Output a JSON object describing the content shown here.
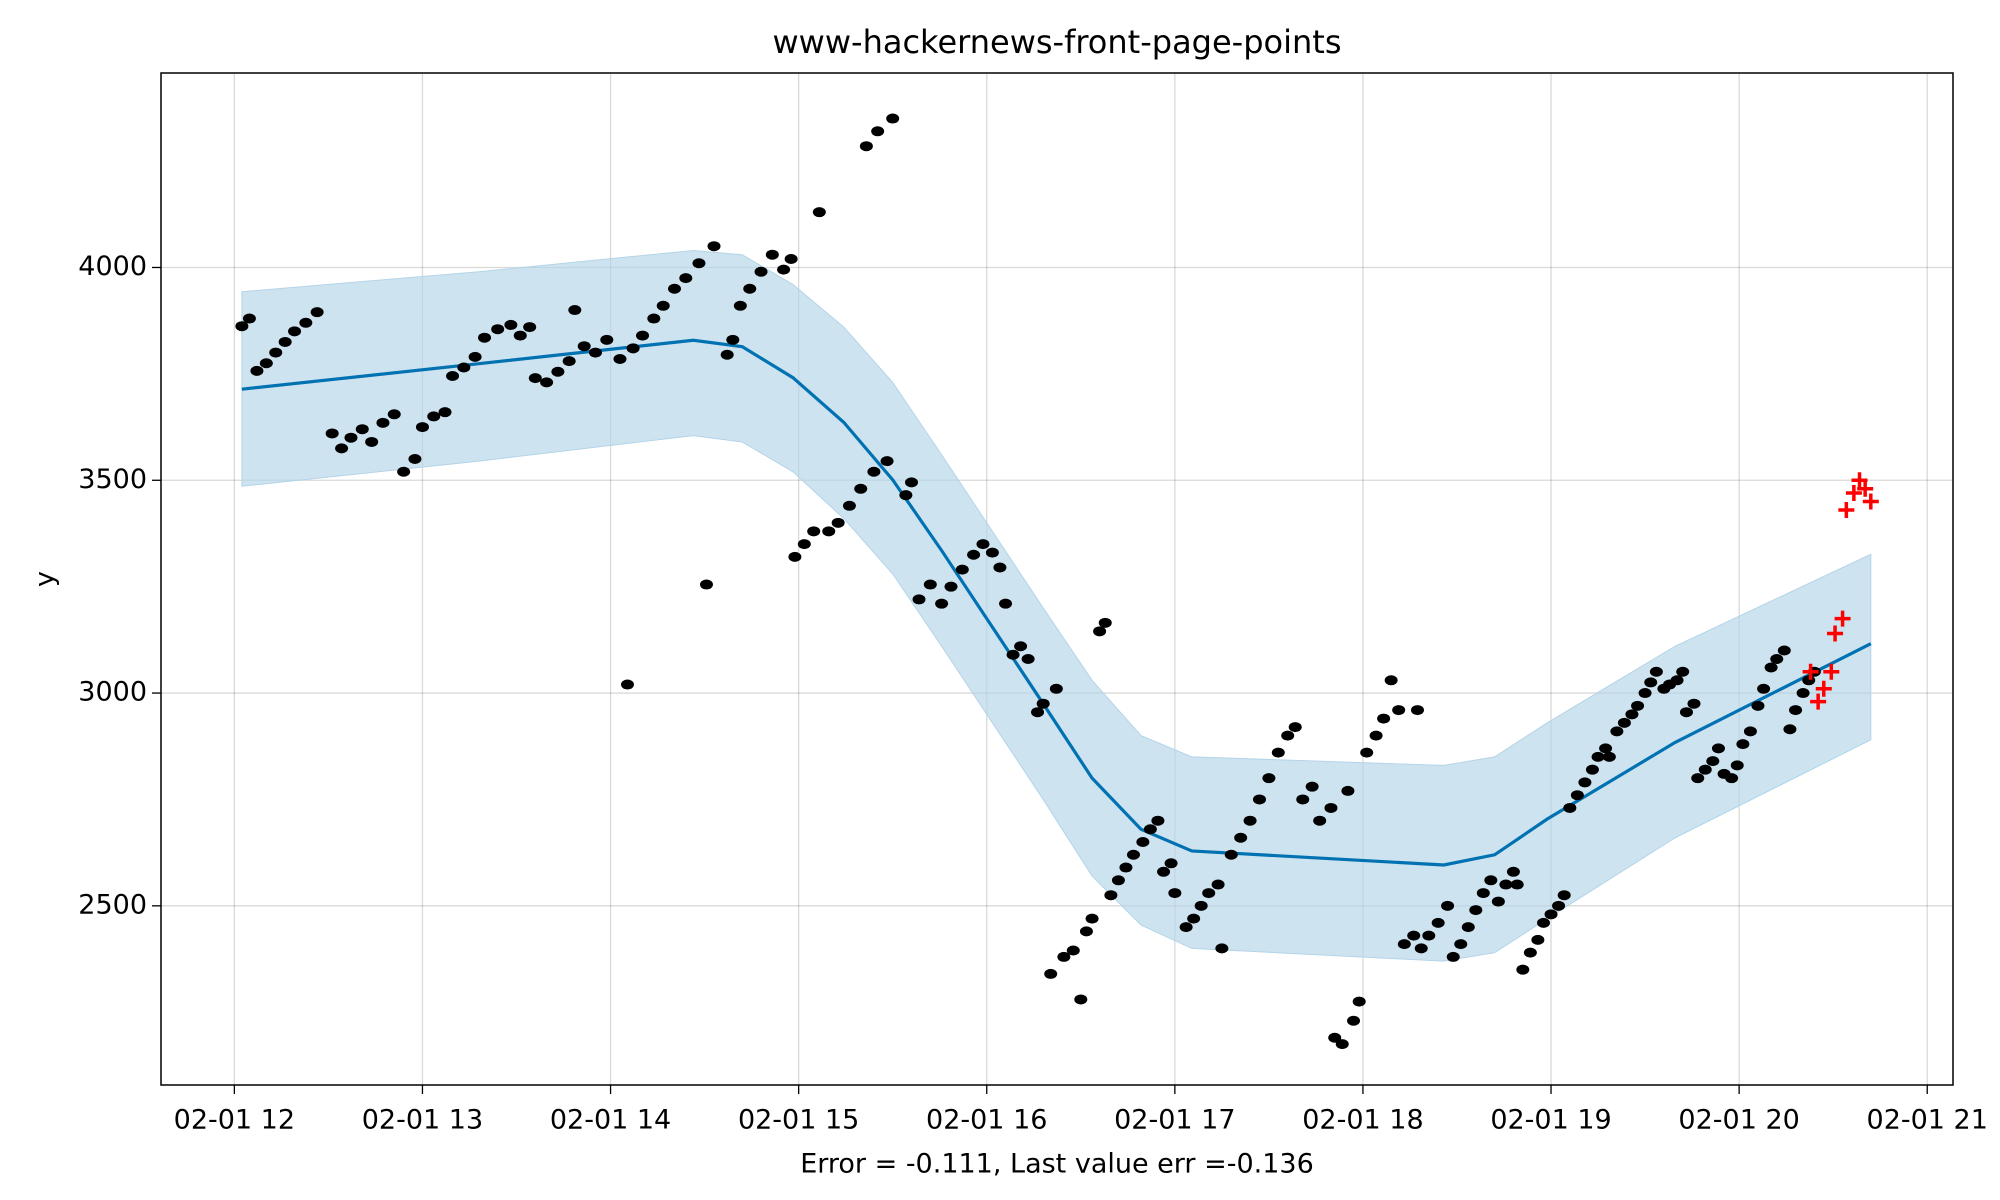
{
  "chart_data": {
    "type": "line",
    "title": "www-hackernews-front-page-points",
    "xlabel": "Error = -0.111, Last value err =-0.136",
    "ylabel": "y",
    "xlim": [
      11.61,
      21.137
    ],
    "ylim": [
      2079,
      4457
    ],
    "xticks": [
      {
        "value": 12,
        "label": "02-01 12"
      },
      {
        "value": 13,
        "label": "02-01 13"
      },
      {
        "value": 14,
        "label": "02-01 14"
      },
      {
        "value": 15,
        "label": "02-01 15"
      },
      {
        "value": 16,
        "label": "02-01 16"
      },
      {
        "value": 17,
        "label": "02-01 17"
      },
      {
        "value": 18,
        "label": "02-01 18"
      },
      {
        "value": 19,
        "label": "02-01 19"
      },
      {
        "value": 20,
        "label": "02-01 20"
      },
      {
        "value": 21,
        "label": "02-01 21"
      }
    ],
    "yticks": [
      2500,
      3000,
      3500,
      4000
    ],
    "grid": true,
    "series": [
      {
        "type": "band",
        "color": "#b4d4e8",
        "x": [
          12.04,
          13.3,
          14.44,
          14.7,
          14.97,
          15.24,
          15.5,
          15.76,
          16.03,
          16.3,
          16.56,
          16.82,
          17.09,
          18.43,
          18.7,
          18.98,
          19.66,
          20.7
        ],
        "lower": [
          3486,
          3545,
          3605,
          3590,
          3520,
          3410,
          3280,
          3110,
          2930,
          2750,
          2570,
          2455,
          2400,
          2370,
          2390,
          2470,
          2660,
          2890
        ],
        "upper": [
          3943,
          3990,
          4040,
          4030,
          3960,
          3860,
          3730,
          3560,
          3380,
          3200,
          3030,
          2900,
          2850,
          2830,
          2850,
          2930,
          3110,
          3326
        ]
      },
      {
        "type": "line",
        "color": "#0072b2",
        "x": [
          12.04,
          13.3,
          14.44,
          14.7,
          14.97,
          15.24,
          15.5,
          15.76,
          16.03,
          16.3,
          16.56,
          16.82,
          17.09,
          18.43,
          18.7,
          18.98,
          19.66,
          20.7
        ],
        "values": [
          3714,
          3774,
          3829,
          3814,
          3741,
          3636,
          3501,
          3335,
          3155,
          2975,
          2800,
          2680,
          2629,
          2596,
          2620,
          2704,
          2884,
          3116
        ]
      },
      {
        "type": "scatter",
        "marker": "dot",
        "color": "#000000",
        "x": [
          12.04,
          12.08,
          12.12,
          12.17,
          12.22,
          12.27,
          12.32,
          12.38,
          12.44,
          12.52,
          12.57,
          12.62,
          12.68,
          12.73,
          12.79,
          12.85,
          12.9,
          12.96,
          13.0,
          13.06,
          13.12,
          13.16,
          13.22,
          13.28,
          13.33,
          13.4,
          13.47,
          13.52,
          13.57,
          13.6,
          13.66,
          13.72,
          13.78,
          13.81,
          13.86,
          13.92,
          13.98,
          14.05,
          14.09,
          14.12,
          14.17,
          14.23,
          14.28,
          14.34,
          14.4,
          14.47,
          14.51,
          14.55,
          14.62,
          14.65,
          14.69,
          14.74,
          14.8,
          14.86,
          14.92,
          14.96,
          14.98,
          15.03,
          15.08,
          15.11,
          15.16,
          15.21,
          15.27,
          15.33,
          15.36,
          15.4,
          15.42,
          15.47,
          15.5,
          15.57,
          15.6,
          15.64,
          15.7,
          15.76,
          15.81,
          15.87,
          15.93,
          15.98,
          16.03,
          16.07,
          16.1,
          16.14,
          16.18,
          16.22,
          16.27,
          16.3,
          16.34,
          16.37,
          16.41,
          16.46,
          16.5,
          16.53,
          16.56,
          16.6,
          16.63,
          16.66,
          16.7,
          16.74,
          16.78,
          16.83,
          16.87,
          16.91,
          16.94,
          16.98,
          17.0,
          17.06,
          17.1,
          17.14,
          17.18,
          17.23,
          17.25,
          17.3,
          17.35,
          17.4,
          17.45,
          17.5,
          17.55,
          17.6,
          17.64,
          17.68,
          17.73,
          17.77,
          17.83,
          17.85,
          17.89,
          17.92,
          17.95,
          17.98,
          18.02,
          18.07,
          18.11,
          18.15,
          18.19,
          18.22,
          18.27,
          18.29,
          18.31,
          18.35,
          18.4,
          18.45,
          18.48,
          18.52,
          18.56,
          18.6,
          18.64,
          18.68,
          18.72,
          18.76,
          18.8,
          18.82,
          18.85,
          18.89,
          18.93,
          18.96,
          19.0,
          19.04,
          19.07,
          19.1,
          19.14,
          19.18,
          19.22,
          19.25,
          19.29,
          19.31,
          19.35,
          19.39,
          19.43,
          19.46,
          19.5,
          19.53,
          19.56,
          19.6,
          19.63,
          19.67,
          19.7,
          19.72,
          19.76,
          19.78,
          19.82,
          19.86,
          19.89,
          19.92,
          19.96,
          19.99,
          20.02,
          20.06,
          20.1,
          20.13,
          20.17,
          20.2,
          20.24,
          20.27,
          20.3,
          20.34,
          20.37,
          20.4
        ],
        "values": [
          3862,
          3880,
          3757,
          3775,
          3800,
          3825,
          3850,
          3870,
          3895,
          3610,
          3575,
          3600,
          3620,
          3590,
          3635,
          3655,
          3520,
          3550,
          3625,
          3650,
          3660,
          3745,
          3765,
          3790,
          3835,
          3855,
          3865,
          3840,
          3860,
          3740,
          3730,
          3755,
          3780,
          3900,
          3815,
          3800,
          3830,
          3785,
          3020,
          3810,
          3840,
          3880,
          3910,
          3950,
          3975,
          4010,
          3255,
          4050,
          3795,
          3830,
          3910,
          3950,
          3990,
          4030,
          3995,
          4020,
          3320,
          3350,
          3380,
          4130,
          3380,
          3400,
          3440,
          3480,
          4285,
          3520,
          4320,
          3545,
          4350,
          3465,
          3495,
          3220,
          3255,
          3210,
          3250,
          3290,
          3325,
          3350,
          3330,
          3295,
          3210,
          3090,
          3110,
          3080,
          2955,
          2975,
          2340,
          3010,
          2380,
          2395,
          2280,
          2440,
          2470,
          3145,
          3165,
          2525,
          2560,
          2590,
          2620,
          2650,
          2680,
          2700,
          2580,
          2600,
          2530,
          2450,
          2470,
          2500,
          2530,
          2550,
          2400,
          2620,
          2660,
          2700,
          2750,
          2800,
          2860,
          2900,
          2920,
          2750,
          2780,
          2700,
          2730,
          2190,
          2175,
          2770,
          2230,
          2275,
          2860,
          2900,
          2940,
          3030,
          2960,
          2410,
          2430,
          2960,
          2400,
          2430,
          2460,
          2500,
          2380,
          2410,
          2450,
          2490,
          2530,
          2560,
          2510,
          2550,
          2580,
          2550,
          2350,
          2390,
          2420,
          2460,
          2480,
          2500,
          2525,
          2730,
          2760,
          2790,
          2820,
          2850,
          2870,
          2850,
          2910,
          2930,
          2950,
          2970,
          3000,
          3025,
          3050,
          3010,
          3020,
          3030,
          3050,
          2955,
          2975,
          2800,
          2820,
          2840,
          2870,
          2810,
          2800,
          2830,
          2880,
          2910,
          2970,
          3010,
          3060,
          3080,
          3100,
          2915,
          2960,
          3000,
          3030,
          3050
        ]
      },
      {
        "type": "scatter",
        "marker": "plus",
        "color": "#ff0000",
        "x": [
          20.38,
          20.42,
          20.45,
          20.49,
          20.51,
          20.55,
          20.57,
          20.61,
          20.64,
          20.67,
          20.7
        ],
        "values": [
          3050,
          2980,
          3010,
          3050,
          3140,
          3175,
          3430,
          3470,
          3500,
          3480,
          3450
        ]
      }
    ]
  }
}
